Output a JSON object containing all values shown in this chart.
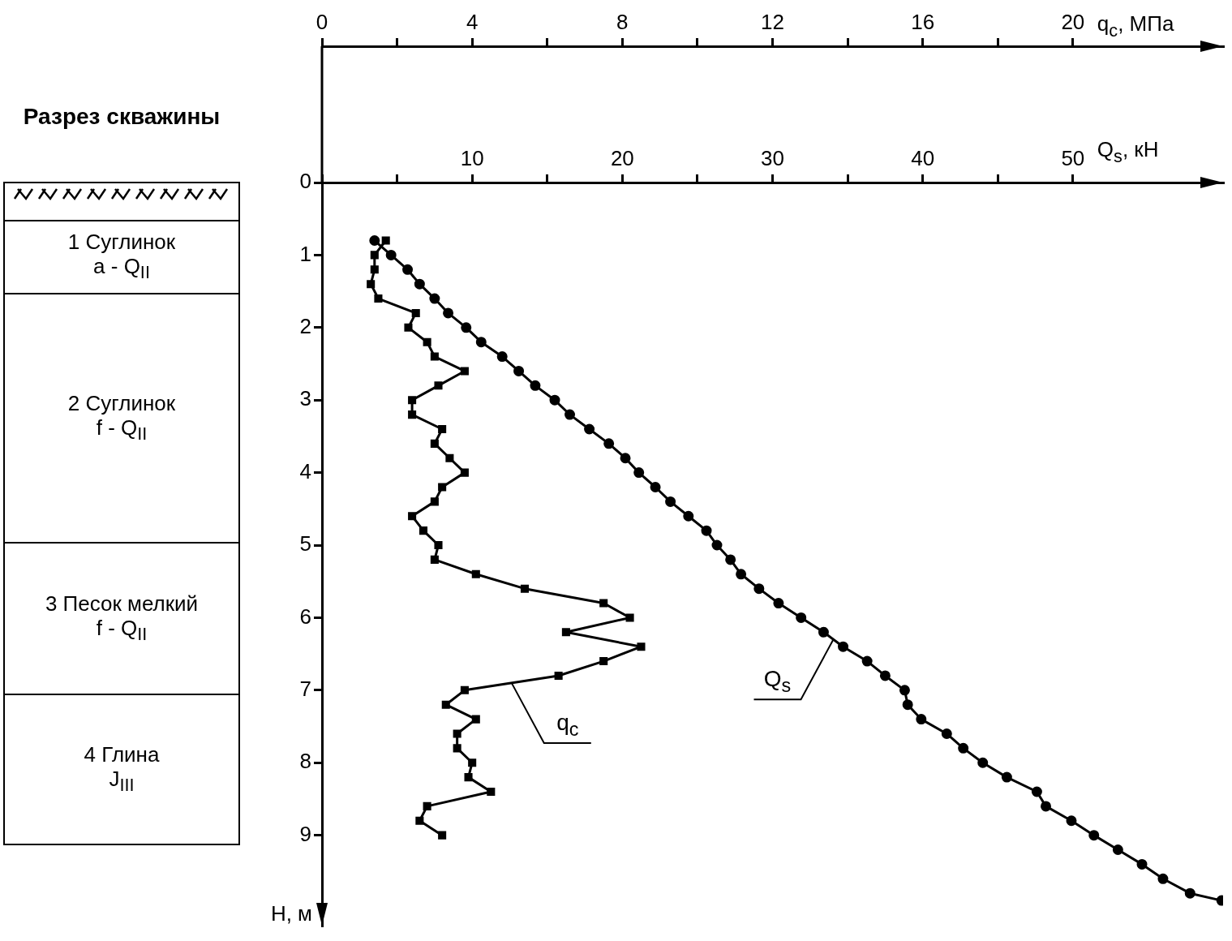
{
  "chart_data": [
    {
      "type": "other",
      "title": "Разрез скважины",
      "annotations": [
        "1 Суглинок\na - Q$_{II}$",
        "2 Суглинок\nf - Q$_{II}$",
        "3 Песок мелкий\nf - Q$_{II}$",
        "4 Глина\nJ$_{III}$"
      ]
    },
    {
      "type": "line",
      "xlabel": "Q$_{s}$, кН",
      "x2label": "q$_{c}$, МПа",
      "ylabel": "H, м",
      "xlim": [
        0,
        60
      ],
      "xticks": [
        {
          "value": 0,
          "label": null
        },
        {
          "value": 5,
          "label": null
        },
        10,
        {
          "value": 15,
          "label": null
        },
        20,
        {
          "value": 25,
          "label": null
        },
        30,
        {
          "value": 35,
          "label": null
        },
        40,
        {
          "value": 45,
          "label": null
        },
        50
      ],
      "x2lim": [
        0,
        24
      ],
      "x2ticks": [
        0,
        {
          "value": 2,
          "label": null
        },
        4,
        {
          "value": 6,
          "label": null
        },
        8,
        {
          "value": 10,
          "label": null
        },
        12,
        {
          "value": 14,
          "label": null
        },
        16,
        {
          "value": 18,
          "label": null
        },
        20
      ],
      "ylim": [
        10.25,
        0
      ],
      "yticks": [
        0,
        1,
        2,
        3,
        4,
        5,
        6,
        7,
        8,
        9
      ],
      "series": [
        {
          "name": "q$_{c}$",
          "color": "#000000",
          "marker": "square",
          "axis": "x2",
          "x": [
            1.7,
            1.4,
            1.4,
            1.3,
            1.5,
            2.5,
            2.3,
            2.8,
            3.0,
            3.8,
            3.1,
            2.4,
            2.4,
            3.2,
            3.0,
            3.4,
            3.8,
            3.2,
            3.0,
            2.4,
            2.7,
            3.1,
            3.0,
            4.1,
            5.4,
            7.5,
            8.2,
            6.5,
            8.5,
            7.5,
            6.3,
            3.8,
            3.3,
            4.1,
            3.6,
            3.6,
            4.0,
            3.9,
            4.5,
            2.8,
            2.6,
            3.2
          ],
          "values": [
            0.8,
            1.0,
            1.2,
            1.4,
            1.6,
            1.8,
            2.0,
            2.2,
            2.4,
            2.6,
            2.8,
            3.0,
            3.2,
            3.4,
            3.6,
            3.8,
            4.0,
            4.2,
            4.4,
            4.6,
            4.8,
            5.0,
            5.2,
            5.4,
            5.6,
            5.8,
            6.0,
            6.2,
            6.4,
            6.6,
            6.8,
            7.0,
            7.2,
            7.4,
            7.6,
            7.8,
            8.0,
            8.2,
            8.4,
            8.6,
            8.8,
            9.0
          ]
        },
        {
          "name": "Q$_{s}$",
          "color": "#000000",
          "marker": "circle",
          "x": [
            3.5,
            4.6,
            5.7,
            6.5,
            7.5,
            8.4,
            9.6,
            10.6,
            12.0,
            13.1,
            14.2,
            15.5,
            16.5,
            17.8,
            19.1,
            20.2,
            21.1,
            22.2,
            23.2,
            24.4,
            25.6,
            26.3,
            27.2,
            27.9,
            29.1,
            30.4,
            31.9,
            33.4,
            34.7,
            36.3,
            37.5,
            38.8,
            39.0,
            39.9,
            41.6,
            42.7,
            44.0,
            45.6,
            47.6,
            48.2,
            49.9,
            51.4,
            53.0,
            54.6,
            56.0,
            57.8,
            59.9
          ],
          "values": [
            0.8,
            1.0,
            1.2,
            1.4,
            1.6,
            1.8,
            2.0,
            2.2,
            2.4,
            2.6,
            2.8,
            3.0,
            3.2,
            3.4,
            3.6,
            3.8,
            4.0,
            4.2,
            4.4,
            4.6,
            4.8,
            5.0,
            5.2,
            5.4,
            5.6,
            5.8,
            6.0,
            6.2,
            6.4,
            6.6,
            6.8,
            7.0,
            7.2,
            7.4,
            7.6,
            7.8,
            8.0,
            8.2,
            8.4,
            8.6,
            8.8,
            9.0,
            9.2,
            9.4,
            9.6,
            9.8,
            9.9
          ]
        }
      ]
    }
  ]
}
